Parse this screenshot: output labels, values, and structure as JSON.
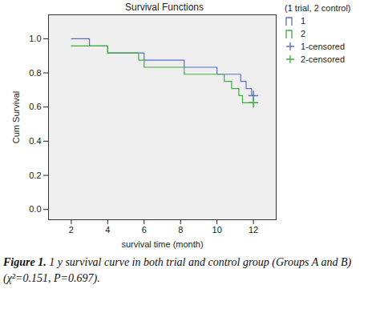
{
  "chart_data": {
    "type": "step",
    "title": "Survival Functions",
    "x_label": "survival time (month)",
    "y_label": "Cum Survival",
    "legend_title": "(1 trial, 2 control)",
    "legend": "right",
    "caption_label": "Figure 1.",
    "caption": "1 y survival curve in both trial and control group (Groups A and B) (χ²=0.151, P=0.697).",
    "xlim": [
      0.75,
      13.25
    ],
    "ylim": [
      -0.06,
      1.14
    ],
    "xticks": [
      2,
      4,
      6,
      8,
      10,
      12
    ],
    "yticks": [
      {
        "value": 0,
        "label": "0.0"
      },
      {
        "value": 0.2,
        "label": "0.2"
      },
      {
        "value": 0.4,
        "label": "0.4"
      },
      {
        "value": 0.6,
        "label": "0.6"
      },
      {
        "value": 0.8,
        "label": "0.8"
      },
      {
        "value": 1,
        "label": "1.0"
      }
    ],
    "grid": false,
    "series": [
      {
        "name": "1",
        "type": "line",
        "color": "#5b6fc9",
        "x": [
          2,
          3,
          4,
          6,
          8.2,
          10,
          11.3,
          11.6,
          11.9,
          12
        ],
        "values": [
          1.0,
          0.958,
          0.917,
          0.875,
          0.833,
          0.792,
          0.75,
          0.708,
          0.667,
          0.667
        ]
      },
      {
        "name": "2",
        "type": "line",
        "color": "#3fae3f",
        "x": [
          2,
          4,
          5.7,
          6,
          8.2,
          10.4,
          10.8,
          11.2,
          11.4,
          12
        ],
        "values": [
          0.958,
          0.917,
          0.875,
          0.833,
          0.792,
          0.75,
          0.708,
          0.667,
          0.625,
          0.625
        ]
      },
      {
        "name": "1-censored",
        "type": "scatter",
        "marker": "plus",
        "color": "#5b6fc9",
        "x": [
          12
        ],
        "values": [
          0.667
        ]
      },
      {
        "name": "2-censored",
        "type": "scatter",
        "marker": "plus",
        "color": "#3fae3f",
        "x": [
          12
        ],
        "values": [
          0.625
        ]
      }
    ]
  }
}
